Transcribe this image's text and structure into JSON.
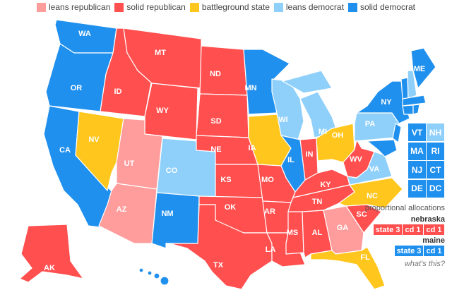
{
  "colors": {
    "leans_republican": "#ff9c9c",
    "solid_republican": "#ff4f4f",
    "battleground": "#ffc61e",
    "leans_democrat": "#8fd0fb",
    "solid_democrat": "#2090ee"
  },
  "legend": [
    {
      "label": "leans republican",
      "category": "leans_republican"
    },
    {
      "label": "solid republican",
      "category": "solid_republican"
    },
    {
      "label": "battleground state",
      "category": "battleground"
    },
    {
      "label": "leans democrat",
      "category": "leans_democrat"
    },
    {
      "label": "solid democrat",
      "category": "solid_democrat"
    }
  ],
  "states": {
    "WA": "solid_democrat",
    "OR": "solid_democrat",
    "CA": "solid_democrat",
    "NV": "battleground",
    "ID": "solid_republican",
    "MT": "solid_republican",
    "WY": "solid_republican",
    "UT": "leans_republican",
    "CO": "leans_democrat",
    "AZ": "leans_republican",
    "NM": "solid_democrat",
    "ND": "solid_republican",
    "SD": "solid_republican",
    "NE": "solid_republican",
    "KS": "solid_republican",
    "OK": "solid_republican",
    "TX": "solid_republican",
    "MN": "solid_democrat",
    "IA": "battleground",
    "MO": "solid_republican",
    "AR": "solid_republican",
    "LA": "solid_republican",
    "WI": "leans_democrat",
    "IL": "solid_democrat",
    "MS": "solid_republican",
    "MI": "leans_democrat",
    "IN": "solid_republican",
    "KY": "solid_republican",
    "TN": "solid_republican",
    "AL": "solid_republican",
    "GA": "leans_republican",
    "FL": "battleground",
    "OH": "battleground",
    "WV": "solid_republican",
    "VA": "leans_democrat",
    "NC": "battleground",
    "SC": "solid_republican",
    "PA": "leans_democrat",
    "NY": "solid_democrat",
    "ME": "solid_democrat",
    "AK": "solid_republican",
    "HI": "solid_democrat",
    "VT": "solid_democrat",
    "NH": "leans_democrat",
    "MA": "solid_democrat",
    "RI": "solid_democrat",
    "NJ": "solid_democrat",
    "CT": "solid_democrat",
    "DE": "solid_democrat",
    "DC": "solid_democrat",
    "MD": "solid_democrat"
  },
  "small_states": [
    "VT",
    "NH",
    "MA",
    "RI",
    "NJ",
    "CT",
    "DE",
    "DC"
  ],
  "proportional": {
    "title": "proportional allocations",
    "nebraska": {
      "label": "nebraska",
      "boxes": [
        {
          "text": "state 3",
          "category": "solid_republican"
        },
        {
          "text": "cd 1",
          "category": "solid_republican"
        },
        {
          "text": "cd 1",
          "category": "solid_republican"
        }
      ]
    },
    "maine": {
      "label": "maine",
      "boxes": [
        {
          "text": "state 3",
          "category": "solid_democrat"
        },
        {
          "text": "cd 1",
          "category": "solid_democrat"
        }
      ]
    },
    "help": "what's this?"
  }
}
